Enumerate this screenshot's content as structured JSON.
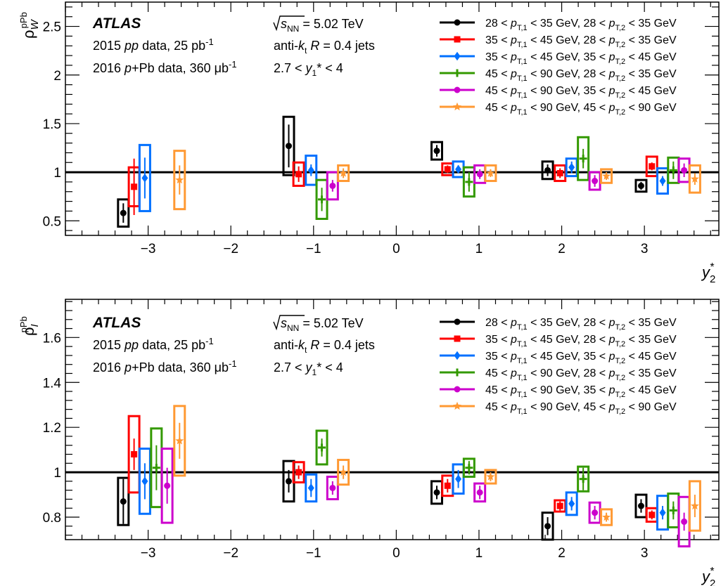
{
  "chart_data": [
    {
      "type": "scatter",
      "id": "top",
      "ylabel": "ρ_W^pPb",
      "ylabel_main": "ρ",
      "ylabel_sup": "pPb",
      "ylabel_sub": "W",
      "xlabel_main": "y",
      "xlabel_sup": "*",
      "xlabel_sub": "2",
      "xlim": [
        -4.0,
        3.9
      ],
      "ylim": [
        0.35,
        2.75
      ],
      "xticks": [
        -3,
        -2,
        -1,
        0,
        1,
        2,
        3
      ],
      "xtick_labels": [
        "−3",
        "−2",
        "−1",
        "0",
        "1",
        "2",
        "3"
      ],
      "yticks": [
        0.5,
        1,
        1.5,
        2,
        2.5
      ],
      "ytick_labels": [
        "0.5",
        "1",
        "1.5",
        "2",
        "2.5"
      ],
      "reference_line": 1,
      "series": [
        {
          "name": "28 < pT,1 < 35 GeV, 28 < pT,2 < 35 GeV",
          "color": "#000000",
          "marker": "circle",
          "points": [
            {
              "x": -3.3,
              "y": 0.58,
              "stat": 0.1,
              "sys": 0.14
            },
            {
              "x": -1.3,
              "y": 1.27,
              "stat": 0.22,
              "sys": 0.3
            },
            {
              "x": 0.49,
              "y": 1.22,
              "stat": 0.06,
              "sys": 0.09
            },
            {
              "x": 1.83,
              "y": 1.02,
              "stat": 0.06,
              "sys": 0.09
            },
            {
              "x": 2.96,
              "y": 0.86,
              "stat": 0.04,
              "sys": 0.06
            }
          ]
        },
        {
          "name": "35 < pT,1 < 45 GeV, 28 < pT,2 < 35 GeV",
          "color": "#ff0000",
          "marker": "square",
          "points": [
            {
              "x": -3.17,
              "y": 0.85,
              "stat": 0.29,
              "sys": 0.2
            },
            {
              "x": -1.18,
              "y": 0.98,
              "stat": 0.08,
              "sys": 0.12
            },
            {
              "x": 0.62,
              "y": 1.03,
              "stat": 0.04,
              "sys": 0.06
            },
            {
              "x": 1.98,
              "y": 0.99,
              "stat": 0.05,
              "sys": 0.08
            },
            {
              "x": 3.09,
              "y": 1.06,
              "stat": 0.04,
              "sys": 0.1
            }
          ]
        },
        {
          "name": "35 < pT,1 < 45 GeV, 35 < pT,2 < 45 GeV",
          "color": "#0070ff",
          "marker": "diamond",
          "points": [
            {
              "x": -3.04,
              "y": 0.94,
              "stat": 0.21,
              "sys": 0.34
            },
            {
              "x": -1.03,
              "y": 1.02,
              "stat": 0.06,
              "sys": 0.15
            },
            {
              "x": 0.75,
              "y": 1.03,
              "stat": 0.04,
              "sys": 0.08
            },
            {
              "x": 2.12,
              "y": 1.05,
              "stat": 0.06,
              "sys": 0.09
            },
            {
              "x": 3.22,
              "y": 0.91,
              "stat": 0.05,
              "sys": 0.13
            }
          ]
        },
        {
          "name": "45 < pT,1 < 90 GeV, 28 < pT,2 < 35 GeV",
          "color": "#339900",
          "marker": "cross",
          "points": [
            {
              "x": -0.9,
              "y": 0.72,
              "stat": 0.12,
              "sys": 0.2
            },
            {
              "x": 0.88,
              "y": 0.9,
              "stat": 0.1,
              "sys": 0.15
            },
            {
              "x": 2.26,
              "y": 1.14,
              "stat": 0.1,
              "sys": 0.22
            },
            {
              "x": 3.35,
              "y": 1.02,
              "stat": 0.09,
              "sys": 0.13
            }
          ]
        },
        {
          "name": "45 < pT,1 < 90 GeV, 35 < pT,2 < 45 GeV",
          "color": "#cc00cc",
          "marker": "circle",
          "points": [
            {
              "x": -0.77,
              "y": 0.86,
              "stat": 0.06,
              "sys": 0.14
            },
            {
              "x": 1.01,
              "y": 0.98,
              "stat": 0.05,
              "sys": 0.09
            },
            {
              "x": 2.4,
              "y": 0.91,
              "stat": 0.06,
              "sys": 0.09
            },
            {
              "x": 3.48,
              "y": 1.02,
              "stat": 0.07,
              "sys": 0.12
            }
          ]
        },
        {
          "name": "45 < pT,1 < 90 GeV, 45 < pT,2 < 90 GeV",
          "color": "#ff9933",
          "marker": "star",
          "points": [
            {
              "x": -2.62,
              "y": 0.92,
              "stat": 0.15,
              "sys": 0.3
            },
            {
              "x": -0.64,
              "y": 0.99,
              "stat": 0.05,
              "sys": 0.08
            },
            {
              "x": 1.14,
              "y": 0.99,
              "stat": 0.04,
              "sys": 0.08
            },
            {
              "x": 2.54,
              "y": 0.96,
              "stat": 0.04,
              "sys": 0.07
            },
            {
              "x": 3.61,
              "y": 0.93,
              "stat": 0.06,
              "sys": 0.14
            }
          ]
        }
      ]
    },
    {
      "type": "scatter",
      "id": "bottom",
      "ylabel": "ρ_I^pPb",
      "ylabel_main": "ρ",
      "ylabel_sup": "pPb",
      "ylabel_sub": "I",
      "xlabel_main": "y",
      "xlabel_sup": "*",
      "xlabel_sub": "2",
      "xlim": [
        -4.0,
        3.9
      ],
      "ylim": [
        0.7,
        1.77
      ],
      "xticks": [
        -3,
        -2,
        -1,
        0,
        1,
        2,
        3
      ],
      "xtick_labels": [
        "−3",
        "−2",
        "−1",
        "0",
        "1",
        "2",
        "3"
      ],
      "yticks": [
        0.8,
        1,
        1.2,
        1.4,
        1.6
      ],
      "ytick_labels": [
        "0.8",
        "1",
        "1.2",
        "1.4",
        "1.6"
      ],
      "reference_line": 1,
      "series": [
        {
          "name": "28 < pT,1 < 35 GeV, 28 < pT,2 < 35 GeV",
          "color": "#000000",
          "marker": "circle",
          "points": [
            {
              "x": -3.3,
              "y": 0.87,
              "stat": 0.1,
              "sys": 0.105
            },
            {
              "x": -1.3,
              "y": 0.96,
              "stat": 0.05,
              "sys": 0.09
            },
            {
              "x": 0.49,
              "y": 0.91,
              "stat": 0.03,
              "sys": 0.05
            },
            {
              "x": 1.83,
              "y": 0.76,
              "stat": 0.04,
              "sys": 0.06
            },
            {
              "x": 2.96,
              "y": 0.85,
              "stat": 0.03,
              "sys": 0.05
            }
          ]
        },
        {
          "name": "35 < pT,1 < 45 GeV, 28 < pT,2 < 35 GeV",
          "color": "#ff0000",
          "marker": "square",
          "points": [
            {
              "x": -3.17,
              "y": 1.08,
              "stat": 0.07,
              "sys": 0.17
            },
            {
              "x": -1.18,
              "y": 1.0,
              "stat": 0.03,
              "sys": 0.045
            },
            {
              "x": 0.62,
              "y": 0.94,
              "stat": 0.03,
              "sys": 0.045
            },
            {
              "x": 1.98,
              "y": 0.85,
              "stat": 0.02,
              "sys": 0.025
            },
            {
              "x": 3.09,
              "y": 0.81,
              "stat": 0.02,
              "sys": 0.03
            }
          ]
        },
        {
          "name": "35 < pT,1 < 45 GeV, 35 < pT,2 < 45 GeV",
          "color": "#0070ff",
          "marker": "diamond",
          "points": [
            {
              "x": -3.04,
              "y": 0.96,
              "stat": 0.08,
              "sys": 0.145
            },
            {
              "x": -1.03,
              "y": 0.93,
              "stat": 0.04,
              "sys": 0.06
            },
            {
              "x": 0.75,
              "y": 0.97,
              "stat": 0.04,
              "sys": 0.065
            },
            {
              "x": 2.12,
              "y": 0.86,
              "stat": 0.03,
              "sys": 0.05
            },
            {
              "x": 3.22,
              "y": 0.82,
              "stat": 0.03,
              "sys": 0.075
            }
          ]
        },
        {
          "name": "45 < pT,1 < 90 GeV, 28 < pT,2 < 35 GeV",
          "color": "#339900",
          "marker": "cross",
          "points": [
            {
              "x": -2.9,
              "y": 1.02,
              "stat": 0.1,
              "sys": 0.175
            },
            {
              "x": -0.9,
              "y": 1.11,
              "stat": 0.04,
              "sys": 0.075
            },
            {
              "x": 0.88,
              "y": 1.02,
              "stat": 0.03,
              "sys": 0.04
            },
            {
              "x": 2.26,
              "y": 0.97,
              "stat": 0.05,
              "sys": 0.055
            },
            {
              "x": 3.35,
              "y": 0.83,
              "stat": 0.04,
              "sys": 0.075
            }
          ]
        },
        {
          "name": "45 < pT,1 < 90 GeV, 35 < pT,2 < 45 GeV",
          "color": "#cc00cc",
          "marker": "circle",
          "points": [
            {
              "x": -2.77,
              "y": 0.94,
              "stat": 0.08,
              "sys": 0.165
            },
            {
              "x": -0.77,
              "y": 0.93,
              "stat": 0.03,
              "sys": 0.05
            },
            {
              "x": 1.01,
              "y": 0.91,
              "stat": 0.03,
              "sys": 0.04
            },
            {
              "x": 2.4,
              "y": 0.82,
              "stat": 0.03,
              "sys": 0.045
            },
            {
              "x": 3.48,
              "y": 0.78,
              "stat": 0.04,
              "sys": 0.11
            }
          ]
        },
        {
          "name": "45 < pT,1 < 90 GeV, 45 < pT,2 < 90 GeV",
          "color": "#ff9933",
          "marker": "star",
          "points": [
            {
              "x": -2.62,
              "y": 1.14,
              "stat": 0.08,
              "sys": 0.155
            },
            {
              "x": -0.64,
              "y": 1.0,
              "stat": 0.03,
              "sys": 0.055
            },
            {
              "x": 1.14,
              "y": 0.98,
              "stat": 0.02,
              "sys": 0.03
            },
            {
              "x": 2.54,
              "y": 0.8,
              "stat": 0.02,
              "sys": 0.035
            },
            {
              "x": 3.61,
              "y": 0.85,
              "stat": 0.05,
              "sys": 0.11
            }
          ]
        }
      ]
    }
  ],
  "annotations": {
    "experiment": "ATLAS",
    "pp_prefix": "2015 ",
    "pp_italic": "pp",
    "pp_suffix": " data, 25 pb",
    "pp_sup": "-1",
    "ppb_prefix": "2016 ",
    "ppb_italic": "p",
    "ppb_suffix": "+Pb data, 360 μb",
    "ppb_sup": "-1",
    "energy_sqrt": "√",
    "energy_s": "s",
    "energy_sub": "NN",
    "energy_value": " = 5.02 TeV",
    "jets_prefix": "anti-",
    "jets_k": "k",
    "jets_ksub": "t",
    "jets_R": " R",
    "jets_suffix": " = 0.4 jets",
    "rap_prefix": "2.7 < ",
    "rap_y": "y",
    "rap_sub": "1",
    "rap_suffix": "* < 4"
  },
  "legend": [
    {
      "low1": "28 < ",
      "p": "p",
      "T1": "T,1",
      "mid": " < 35 GeV,  28 < ",
      "p2": "p",
      "T2": "T,2",
      "end": " < 35 GeV"
    },
    {
      "low1": "35 < ",
      "p": "p",
      "T1": "T,1",
      "mid": " < 45 GeV,  28 < ",
      "p2": "p",
      "T2": "T,2",
      "end": " < 35 GeV"
    },
    {
      "low1": "35 < ",
      "p": "p",
      "T1": "T,1",
      "mid": " < 45 GeV,  35 < ",
      "p2": "p",
      "T2": "T,2",
      "end": " < 45 GeV"
    },
    {
      "low1": "45 < ",
      "p": "p",
      "T1": "T,1",
      "mid": " < 90 GeV,  28 < ",
      "p2": "p",
      "T2": "T,2",
      "end": " < 35 GeV"
    },
    {
      "low1": "45 < ",
      "p": "p",
      "T1": "T,1",
      "mid": " < 90 GeV,  35 < ",
      "p2": "p",
      "T2": "T,2",
      "end": " < 45 GeV"
    },
    {
      "low1": "45 < ",
      "p": "p",
      "T1": "T,1",
      "mid": " < 90 GeV,  45 < ",
      "p2": "p",
      "T2": "T,2",
      "end": " < 90 GeV"
    }
  ]
}
